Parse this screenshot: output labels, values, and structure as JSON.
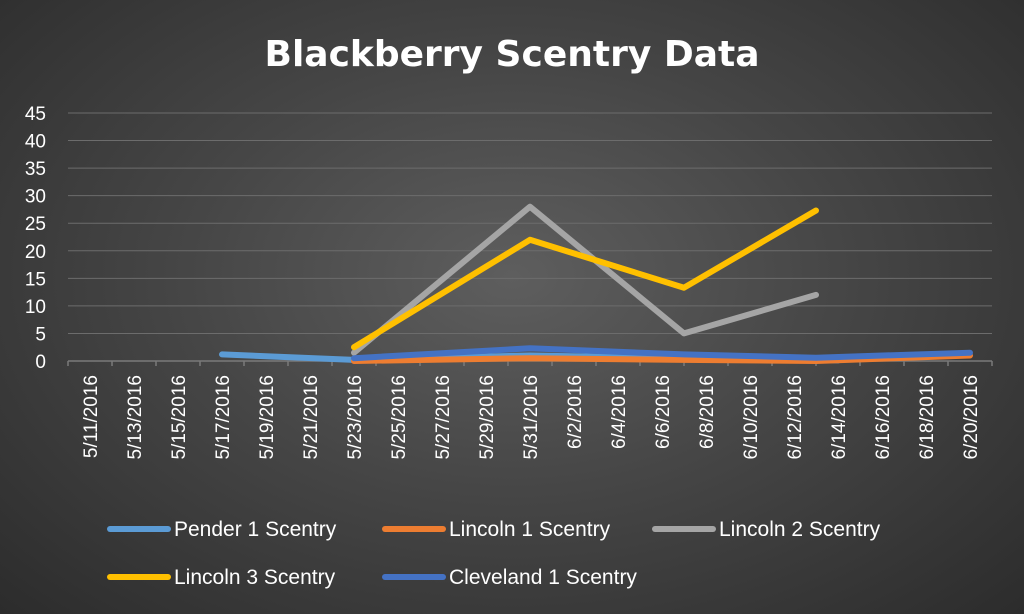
{
  "chart_data": {
    "type": "line",
    "title": "Blackberry Scentry Data",
    "xlabel": "",
    "ylabel": "",
    "ylim": [
      0,
      45
    ],
    "y_ticks": [
      "0",
      "5",
      "10",
      "15",
      "20",
      "25",
      "30",
      "35",
      "40",
      "45"
    ],
    "x_range": [
      "2016-05-11",
      "2016-06-20"
    ],
    "x_ticks": [
      "5/11/2016",
      "5/13/2016",
      "5/15/2016",
      "5/17/2016",
      "5/19/2016",
      "5/21/2016",
      "5/23/2016",
      "5/25/2016",
      "5/27/2016",
      "5/29/2016",
      "5/31/2016",
      "6/2/2016",
      "6/4/2016",
      "6/6/2016",
      "6/8/2016",
      "6/10/2016",
      "6/12/2016",
      "6/14/2016",
      "6/16/2016",
      "6/18/2016",
      "6/20/2016"
    ],
    "grid": true,
    "legend_position": "bottom",
    "series": [
      {
        "name": "Pender 1 Scentry",
        "color": "#5b9bd5",
        "points": [
          [
            "2016-05-17",
            1.2
          ],
          [
            "2016-05-23",
            0.2
          ],
          [
            "2016-05-31",
            1.0
          ],
          [
            "2016-06-07",
            0.5
          ],
          [
            "2016-06-13",
            0.2
          ],
          [
            "2016-06-14",
            0.1
          ]
        ]
      },
      {
        "name": "Lincoln 1 Scentry",
        "color": "#ed7d31",
        "points": [
          [
            "2016-05-23",
            0
          ],
          [
            "2016-05-31",
            0.5
          ],
          [
            "2016-06-07",
            0.2
          ],
          [
            "2016-06-13",
            0
          ],
          [
            "2016-06-20",
            1.0
          ]
        ]
      },
      {
        "name": "Lincoln 2 Scentry",
        "color": "#a5a5a5",
        "points": [
          [
            "2016-05-23",
            1.5
          ],
          [
            "2016-05-31",
            28
          ],
          [
            "2016-06-07",
            5
          ],
          [
            "2016-06-13",
            12
          ]
        ]
      },
      {
        "name": "Lincoln 3 Scentry",
        "color": "#ffc000",
        "points": [
          [
            "2016-05-23",
            2.5
          ],
          [
            "2016-05-31",
            22
          ],
          [
            "2016-06-07",
            13.3
          ],
          [
            "2016-06-13",
            27.3
          ]
        ]
      },
      {
        "name": "Cleveland 1 Scentry",
        "color": "#4472c4",
        "points": [
          [
            "2016-05-23",
            0.5
          ],
          [
            "2016-05-31",
            2.3
          ],
          [
            "2016-06-07",
            1.2
          ],
          [
            "2016-06-13",
            0.6
          ],
          [
            "2016-06-20",
            1.5
          ]
        ]
      }
    ]
  }
}
